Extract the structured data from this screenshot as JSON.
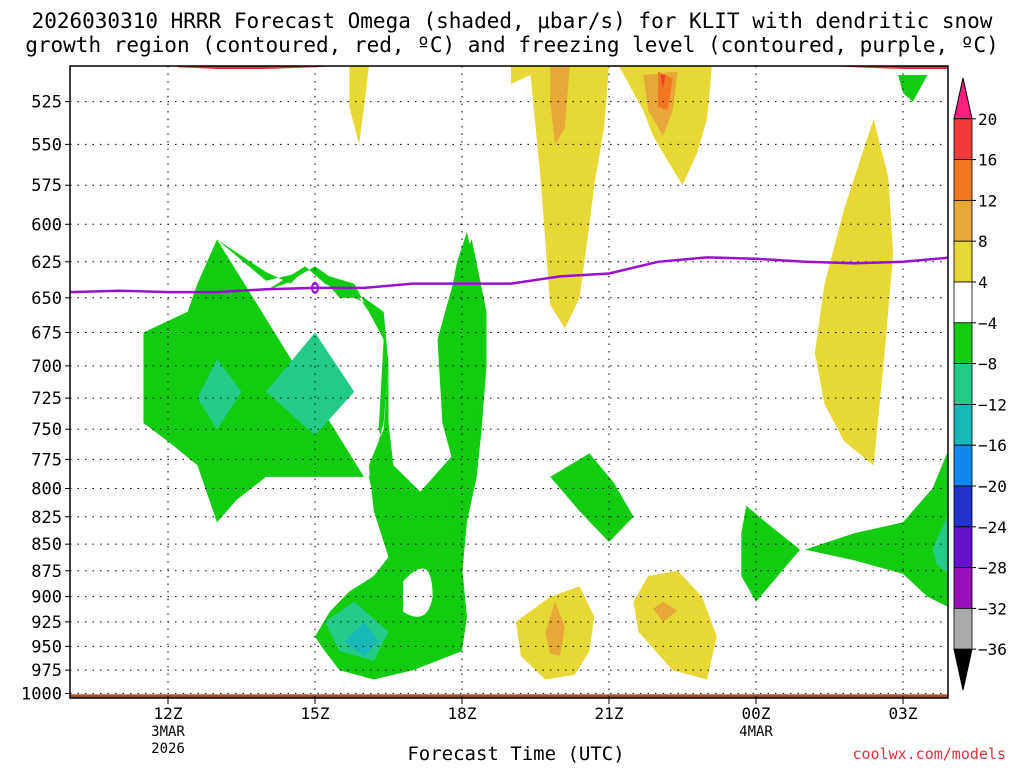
{
  "title": {
    "line1": "2026030310 HRRR Forecast Omega (shaded, μbar/s) for KLIT with dendritic snow",
    "line2": "growth region (contoured, red, ºC) and freezing level (contoured, purple, ºC)"
  },
  "xlabel": "Forecast Time (UTC)",
  "credit": "coolwx.com/models",
  "chart_data": {
    "type": "heatmap",
    "title": "2026030310 HRRR Forecast Omega (shaded, μbar/s) for KLIT",
    "xlabel": "Forecast Time (UTC)",
    "ylabel": "",
    "x_ticks": [
      {
        "t": 12,
        "label": "12Z",
        "sub": [
          "3MAR",
          "2026"
        ]
      },
      {
        "t": 15,
        "label": "15Z",
        "sub": []
      },
      {
        "t": 18,
        "label": "18Z",
        "sub": []
      },
      {
        "t": 21,
        "label": "21Z",
        "sub": []
      },
      {
        "t": 24,
        "label": "00Z",
        "sub": [
          "4MAR"
        ]
      },
      {
        "t": 27,
        "label": "03Z",
        "sub": []
      }
    ],
    "xlim": [
      10,
      28
    ],
    "y_ticks": [
      525,
      550,
      575,
      600,
      625,
      650,
      675,
      700,
      725,
      750,
      775,
      800,
      825,
      850,
      875,
      900,
      925,
      950,
      975,
      1000
    ],
    "ylim_hPa": [
      505,
      1005
    ],
    "y_scale": "log",
    "colorbar": {
      "labels": [
        "20",
        "16",
        "12",
        "8",
        "4",
        "−4",
        "−8",
        "−12",
        "−16",
        "−20",
        "−24",
        "−28",
        "−32",
        "−36"
      ],
      "colors": [
        "#ff1f7f",
        "#f23a3a",
        "#f07820",
        "#e8a838",
        "#e8d836",
        "#ffffff",
        "#11cc11",
        "#22cc88",
        "#17b8b8",
        "#1188ee",
        "#2233cc",
        "#6611cc",
        "#9911bb",
        "#aaaaaa",
        "#000000"
      ]
    },
    "shaded_regions": [
      {
        "name": "sinking-upper-yellow-a",
        "color": "#e8d836",
        "pts": [
          [
            15.7,
            505
          ],
          [
            16.1,
            505
          ],
          [
            16.0,
            528
          ],
          [
            15.9,
            550
          ],
          [
            15.7,
            528
          ]
        ]
      },
      {
        "name": "sinking-upper-yellow-b",
        "color": "#e8d836",
        "pts": [
          [
            19.0,
            505
          ],
          [
            21.0,
            505
          ],
          [
            20.9,
            540
          ],
          [
            20.7,
            575
          ],
          [
            20.6,
            600
          ],
          [
            20.4,
            650
          ],
          [
            20.1,
            672
          ],
          [
            19.8,
            655
          ],
          [
            19.6,
            570
          ],
          [
            19.4,
            510
          ],
          [
            19.0,
            515
          ]
        ]
      },
      {
        "name": "sinking-upper-orange-b",
        "color": "#e8a838",
        "pts": [
          [
            19.8,
            505
          ],
          [
            20.2,
            505
          ],
          [
            20.1,
            540
          ],
          [
            19.9,
            550
          ],
          [
            19.8,
            525
          ]
        ]
      },
      {
        "name": "sinking-upper-yellow-c",
        "color": "#e8d836",
        "pts": [
          [
            21.2,
            505
          ],
          [
            23.1,
            505
          ],
          [
            23.0,
            535
          ],
          [
            22.8,
            555
          ],
          [
            22.5,
            575
          ],
          [
            22.2,
            560
          ],
          [
            21.9,
            545
          ],
          [
            21.7,
            530
          ]
        ]
      },
      {
        "name": "sinking-upper-orange-c",
        "color": "#e8a838",
        "pts": [
          [
            21.7,
            510
          ],
          [
            22.4,
            508
          ],
          [
            22.3,
            530
          ],
          [
            22.1,
            545
          ],
          [
            21.8,
            530
          ]
        ]
      },
      {
        "name": "sinking-upper-darkorange-c",
        "color": "#f07820",
        "pts": [
          [
            22.0,
            508
          ],
          [
            22.3,
            512
          ],
          [
            22.2,
            530
          ],
          [
            22.0,
            528
          ]
        ]
      },
      {
        "name": "sinking-upper-red-c",
        "color": "#f23a3a",
        "pts": [
          [
            22.05,
            510
          ],
          [
            22.15,
            510
          ],
          [
            22.1,
            518
          ]
        ]
      },
      {
        "name": "sinking-right-yellow",
        "color": "#e8d836",
        "pts": [
          [
            26.4,
            535
          ],
          [
            26.7,
            570
          ],
          [
            26.8,
            620
          ],
          [
            26.6,
            700
          ],
          [
            26.4,
            780
          ],
          [
            25.8,
            760
          ],
          [
            25.4,
            730
          ],
          [
            25.2,
            690
          ],
          [
            25.4,
            640
          ],
          [
            25.8,
            590
          ]
        ]
      },
      {
        "name": "rising-left-green",
        "color": "#11cc11",
        "pts": [
          [
            13.0,
            610
          ],
          [
            14.0,
            638
          ],
          [
            15.0,
            630
          ],
          [
            15.5,
            650
          ],
          [
            16.0,
            650
          ],
          [
            16.4,
            660
          ],
          [
            16.5,
            700
          ],
          [
            16.4,
            745
          ],
          [
            16.1,
            790
          ],
          [
            16.3,
            830
          ],
          [
            16.6,
            862
          ],
          [
            16.2,
            885
          ],
          [
            15.9,
            900
          ],
          [
            15.5,
            925
          ],
          [
            15.2,
            940
          ],
          [
            15.5,
            960
          ],
          [
            16.2,
            980
          ],
          [
            17.1,
            965
          ],
          [
            18.0,
            950
          ],
          [
            18.1,
            920
          ],
          [
            18.0,
            880
          ],
          [
            18.1,
            830
          ],
          [
            18.3,
            790
          ],
          [
            18.4,
            750
          ],
          [
            18.5,
            700
          ],
          [
            18.4,
            650
          ],
          [
            18.1,
            605
          ],
          [
            17.9,
            625
          ],
          [
            17.6,
            680
          ],
          [
            17.6,
            740
          ],
          [
            17.8,
            772
          ],
          [
            17.0,
            810
          ],
          [
            16.5,
            780
          ],
          [
            16.3,
            750
          ],
          [
            16.4,
            680
          ],
          [
            15.8,
            640
          ],
          [
            14.8,
            630
          ],
          [
            14.5,
            640
          ],
          [
            14.0,
            632
          ],
          [
            13.0,
            610
          ]
        ]
      },
      {
        "name": "rising-left-green-main",
        "color": "#11cc11",
        "pts": [
          [
            13.0,
            610
          ],
          [
            13.5,
            640
          ],
          [
            14.0,
            645
          ],
          [
            14.8,
            628
          ],
          [
            15.2,
            640
          ],
          [
            15.8,
            650
          ],
          [
            16.4,
            660
          ],
          [
            16.5,
            700
          ],
          [
            16.4,
            750
          ],
          [
            16.1,
            780
          ],
          [
            16.2,
            820
          ],
          [
            16.5,
            862
          ],
          [
            16.2,
            880
          ],
          [
            15.7,
            895
          ],
          [
            15.3,
            915
          ],
          [
            15.0,
            940
          ],
          [
            15.2,
            955
          ],
          [
            15.5,
            975
          ],
          [
            16.2,
            985
          ],
          [
            17.0,
            975
          ],
          [
            18.0,
            955
          ],
          [
            18.1,
            920
          ],
          [
            18.0,
            870
          ],
          [
            17.7,
            830
          ],
          [
            17.9,
            790
          ],
          [
            18.3,
            750
          ],
          [
            18.5,
            700
          ],
          [
            18.5,
            660
          ],
          [
            18.2,
            610
          ],
          [
            17.9,
            630
          ],
          [
            17.5,
            680
          ],
          [
            17.6,
            745
          ],
          [
            17.8,
            775
          ],
          [
            17.2,
            805
          ],
          [
            16.6,
            780
          ],
          [
            16.5,
            745
          ],
          [
            16.5,
            700
          ],
          [
            16.4,
            680
          ],
          [
            16.1,
            660
          ],
          [
            15.9,
            650
          ],
          [
            15.5,
            640
          ],
          [
            15.0,
            628
          ],
          [
            14.4,
            640
          ],
          [
            14.0,
            645
          ],
          [
            13.5,
            640
          ],
          [
            13.0,
            610
          ],
          [
            12.6,
            640
          ],
          [
            12.4,
            660
          ],
          [
            11.5,
            675
          ],
          [
            11.5,
            745
          ],
          [
            12.0,
            760
          ],
          [
            12.6,
            780
          ],
          [
            13.0,
            830
          ],
          [
            13.4,
            810
          ],
          [
            14.0,
            790
          ],
          [
            15.0,
            790
          ],
          [
            16.0,
            790
          ]
        ]
      },
      {
        "name": "rising-mid-green-a",
        "color": "#11cc11",
        "pts": [
          [
            20.6,
            770
          ],
          [
            21.1,
            795
          ],
          [
            21.5,
            825
          ],
          [
            21.0,
            848
          ],
          [
            20.4,
            820
          ],
          [
            19.8,
            790
          ]
        ]
      },
      {
        "name": "rising-right-green-a",
        "color": "#11cc11",
        "pts": [
          [
            23.8,
            815
          ],
          [
            24.2,
            830
          ],
          [
            24.9,
            855
          ],
          [
            24.0,
            905
          ],
          [
            23.7,
            880
          ],
          [
            23.7,
            840
          ]
        ]
      },
      {
        "name": "rising-right-green-b",
        "color": "#11cc11",
        "pts": [
          [
            25.0,
            855
          ],
          [
            26.0,
            840
          ],
          [
            27.0,
            830
          ],
          [
            27.6,
            800
          ],
          [
            28.0,
            760
          ],
          [
            28.0,
            912
          ],
          [
            27.5,
            900
          ],
          [
            27.0,
            878
          ],
          [
            26.0,
            865
          ]
        ]
      },
      {
        "name": "rising-right-green-top",
        "color": "#11cc11",
        "pts": [
          [
            26.9,
            510
          ],
          [
            27.5,
            510
          ],
          [
            27.2,
            525
          ],
          [
            27.0,
            520
          ]
        ]
      }
    ],
    "lines": [
      {
        "name": "freezing-level",
        "color": "#9911cc",
        "pts": [
          [
            10,
            646
          ],
          [
            11,
            645
          ],
          [
            12,
            646
          ],
          [
            13,
            646
          ],
          [
            14,
            644
          ],
          [
            15,
            643
          ],
          [
            16,
            643
          ],
          [
            17,
            640
          ],
          [
            18,
            640
          ],
          [
            19,
            640
          ],
          [
            20,
            635
          ],
          [
            21,
            633
          ],
          [
            22,
            625
          ],
          [
            23,
            622
          ],
          [
            24,
            623
          ],
          [
            25,
            625
          ],
          [
            26,
            626
          ],
          [
            27,
            625
          ],
          [
            28,
            622
          ]
        ]
      },
      {
        "name": "dgz-top-left",
        "color": "#e8303a",
        "pts": [
          [
            12.2,
            505
          ],
          [
            13.0,
            506
          ],
          [
            14.0,
            506
          ],
          [
            15.0,
            505
          ],
          [
            15.7,
            504
          ]
        ]
      },
      {
        "name": "dgz-top-right",
        "color": "#e8303a",
        "pts": [
          [
            25.2,
            504
          ],
          [
            26.0,
            505
          ],
          [
            27.0,
            506
          ],
          [
            28.0,
            506
          ]
        ]
      }
    ]
  }
}
